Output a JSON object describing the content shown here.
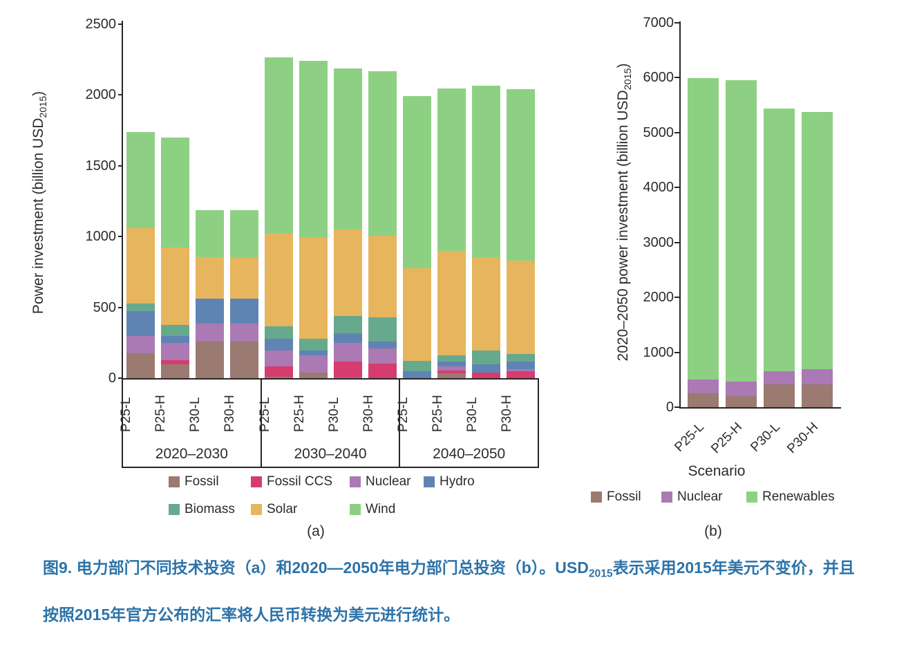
{
  "figure": {
    "panel_a_label": "(a)",
    "panel_b_label": "(b)",
    "caption": {
      "part1": "图9. 电力部门不同技术投资（a）和2020—2050年电力部门总投资（b）。USD",
      "sub": "2015",
      "part2": "表示采用2015年美元不变价，并且按照2015年官方公布的汇率将人民币转换为美元进行统计。",
      "color": "#2c73a9"
    }
  },
  "colors": {
    "axis": "#262626",
    "fossil": "#9b7a71",
    "fossil_ccs": "#d63c6e",
    "nuclear": "#ab79b3",
    "hydro": "#5f84b3",
    "biomass": "#67a98c",
    "solar": "#e7b55e",
    "wind": "#8ed083"
  },
  "chart_data": [
    {
      "type": "bar",
      "stacked": true,
      "panel": "a",
      "ylabel_parts": {
        "main": "Power investment (billion USD",
        "sub": "2015",
        "end": ")"
      },
      "ylim": [
        0,
        2500
      ],
      "yticks": [
        0,
        500,
        1000,
        1500,
        2000,
        2500
      ],
      "grid": false,
      "group_labels": [
        "2020–2030",
        "2030–2040",
        "2040–2050"
      ],
      "group_size": 4,
      "categories": [
        "P25-L",
        "P25-H",
        "P30-L",
        "P30-H",
        "P25-L",
        "P25-H",
        "P30-L",
        "P30-H",
        "P25-L",
        "P25-H",
        "P30-L",
        "P30-H"
      ],
      "series": [
        {
          "name": "Fossil",
          "color": "#9b7a71",
          "values": [
            175,
            100,
            260,
            260,
            10,
            40,
            5,
            0,
            0,
            35,
            0,
            0
          ]
        },
        {
          "name": "Fossil CCS",
          "color": "#d63c6e",
          "values": [
            0,
            25,
            0,
            0,
            75,
            0,
            110,
            105,
            0,
            20,
            40,
            50
          ]
        },
        {
          "name": "Nuclear",
          "color": "#ab79b3",
          "values": [
            125,
            125,
            125,
            125,
            110,
            120,
            135,
            105,
            0,
            30,
            0,
            15
          ]
        },
        {
          "name": "Hydro",
          "color": "#5f84b3",
          "values": [
            175,
            50,
            175,
            175,
            85,
            35,
            70,
            50,
            50,
            30,
            60,
            50
          ]
        },
        {
          "name": "Biomass",
          "color": "#67a98c",
          "values": [
            55,
            75,
            0,
            0,
            85,
            85,
            120,
            170,
            70,
            45,
            95,
            55
          ]
        },
        {
          "name": "Solar",
          "color": "#e7b55e",
          "values": [
            530,
            550,
            295,
            290,
            655,
            710,
            610,
            575,
            655,
            740,
            660,
            660
          ]
        },
        {
          "name": "Wind",
          "color": "#8ed083",
          "values": [
            680,
            775,
            330,
            335,
            1245,
            1250,
            1140,
            1165,
            1215,
            1145,
            1210,
            1210
          ]
        }
      ],
      "totals": [
        1740,
        1700,
        1185,
        1185,
        2265,
        2240,
        2190,
        2170,
        1990,
        2045,
        2065,
        2040
      ],
      "legend_rows": [
        [
          "Fossil",
          "Fossil CCS",
          "Nuclear",
          "Hydro"
        ],
        [
          "Biomass",
          "Solar",
          "Wind"
        ]
      ],
      "legend_position": "bottom"
    },
    {
      "type": "bar",
      "stacked": true,
      "panel": "b",
      "xlabel": "Scenario",
      "ylabel_parts": {
        "main": "2020–2050 power investment (billion USD",
        "sub": "2015",
        "end": ")"
      },
      "ylim": [
        0,
        7000
      ],
      "yticks": [
        0,
        1000,
        2000,
        3000,
        4000,
        5000,
        6000,
        7000
      ],
      "grid": false,
      "categories": [
        "P25-L",
        "P25-H",
        "P30-L",
        "P30-H"
      ],
      "series": [
        {
          "name": "Fossil",
          "color": "#9b7a71",
          "values": [
            255,
            200,
            410,
            420
          ]
        },
        {
          "name": "Nuclear",
          "color": "#ab79b3",
          "values": [
            250,
            260,
            250,
            270
          ]
        },
        {
          "name": "Renewables",
          "color": "#8ed083",
          "values": [
            5485,
            5500,
            4780,
            4680
          ]
        }
      ],
      "totals": [
        5990,
        5960,
        5440,
        5370
      ],
      "legend": [
        "Fossil",
        "Nuclear",
        "Renewables"
      ],
      "legend_position": "bottom"
    }
  ]
}
